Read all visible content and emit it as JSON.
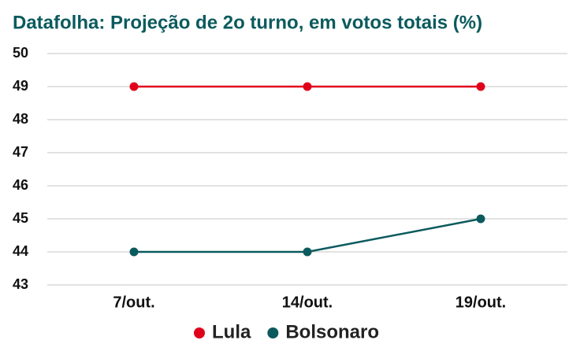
{
  "chart_data": {
    "type": "line",
    "title": "Datafolha: Projeção de 2o turno, em votos totais (%)",
    "categories": [
      "7/out.",
      "14/out.",
      "19/out."
    ],
    "series": [
      {
        "name": "Lula",
        "color": "#e0001b",
        "values": [
          49,
          49,
          49
        ]
      },
      {
        "name": "Bolsonaro",
        "color": "#0b5a5e",
        "values": [
          44,
          44,
          45
        ]
      }
    ],
    "ylim": [
      43,
      50
    ],
    "yticks": [
      43,
      44,
      45,
      46,
      47,
      48,
      49,
      50
    ],
    "grid": true,
    "legend": "bottom"
  }
}
